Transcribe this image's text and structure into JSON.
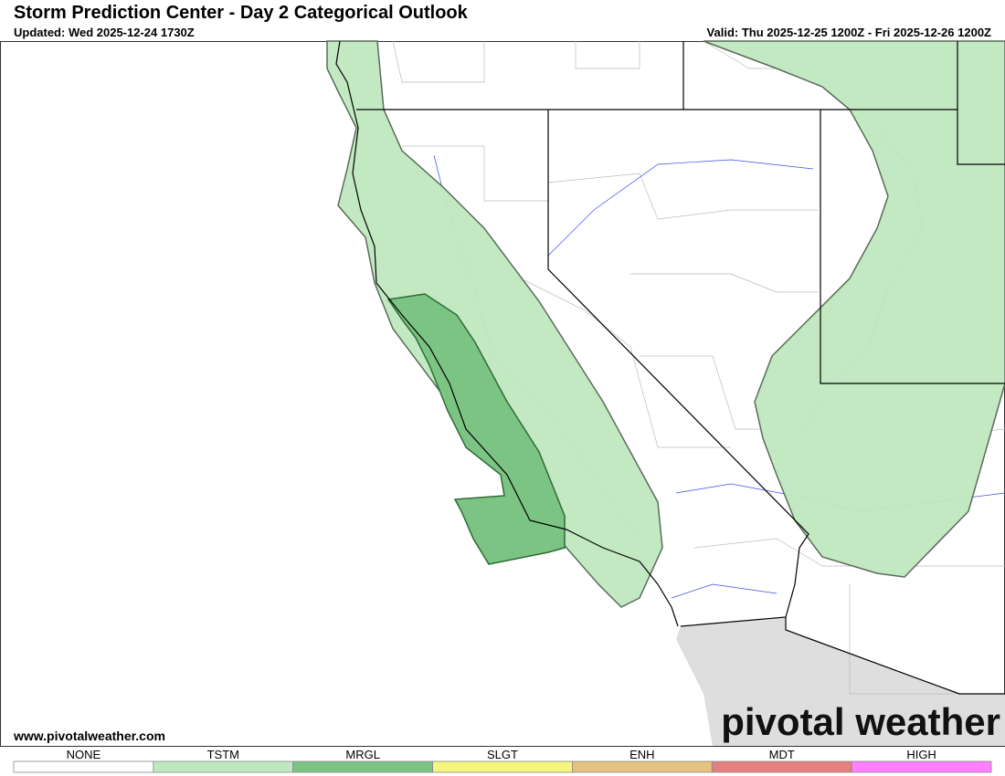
{
  "header": {
    "title": "Storm Prediction Center - Day 2 Categorical Outlook",
    "updated": "Updated: Wed 2025-12-24 1730Z",
    "valid": "Valid: Thu 2025-12-25 1200Z - Fri 2025-12-26 1200Z"
  },
  "footer": {
    "website": "www.pivotalweather.com",
    "logo": "pivotal weather"
  },
  "legend": [
    {
      "label": "NONE",
      "color": "#ffffff"
    },
    {
      "label": "TSTM",
      "color": "#c0e8c0"
    },
    {
      "label": "MRGL",
      "color": "#7cc484"
    },
    {
      "label": "SLGT",
      "color": "#f6f67f"
    },
    {
      "label": "ENH",
      "color": "#e6c27f"
    },
    {
      "label": "MDT",
      "color": "#e67f7f"
    },
    {
      "label": "HIGH",
      "color": "#ff7fff"
    }
  ]
}
